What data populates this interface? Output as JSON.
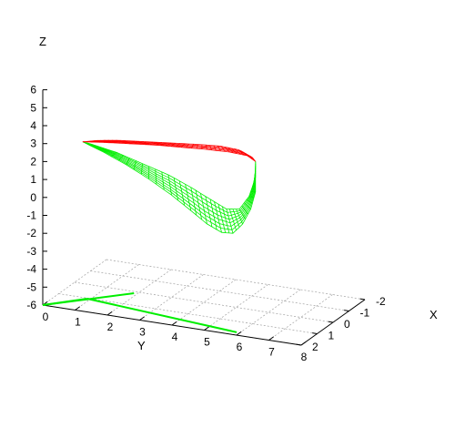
{
  "chart_data": {
    "type": "surface3d",
    "title": "",
    "zlabel": "Z",
    "ylabel": "Y",
    "xlabel": "X",
    "z_ticks": [
      "6",
      "5",
      "4",
      "3",
      "2",
      "1",
      "0",
      "-1",
      "-2",
      "-3",
      "-4",
      "-5",
      "-6"
    ],
    "y_ticks": [
      "0",
      "1",
      "2",
      "3",
      "4",
      "5",
      "6",
      "7",
      "8"
    ],
    "x_ticks": [
      "-2",
      "-1",
      "0",
      "1",
      "2"
    ],
    "zlim": [
      -6,
      6
    ],
    "ylim": [
      0,
      8
    ],
    "xlim": [
      -2,
      2
    ],
    "grid": true,
    "legend": "none",
    "colors": {
      "top_surface": "#ff0000",
      "bottom_surface": "#00ee00",
      "grid": "#a0a0a0",
      "axes": "#000000"
    },
    "series": [
      {
        "role": "top-surface",
        "color": "#ff0000",
        "rows": [
          [
            [
              0.25,
              1.9
            ],
            [
              0.9,
              2.05
            ],
            [
              1.7,
              2.2
            ],
            [
              2.5,
              2.35
            ],
            [
              3.3,
              2.45
            ],
            [
              4.1,
              2.55
            ],
            [
              4.8,
              2.6
            ],
            [
              5.35,
              2.55
            ],
            [
              5.6,
              2.3
            ]
          ],
          [
            [
              0.7,
              2.1
            ],
            [
              1.4,
              2.3
            ],
            [
              2.2,
              2.45
            ],
            [
              3.0,
              2.6
            ],
            [
              3.8,
              2.75
            ],
            [
              4.5,
              2.85
            ],
            [
              5.1,
              2.8
            ],
            [
              5.5,
              2.5
            ]
          ]
        ]
      },
      {
        "role": "bottom-surface",
        "color": "#00ee00",
        "rows": [
          [
            [
              0.25,
              1.9
            ],
            [
              0.9,
              1.5
            ],
            [
              1.6,
              1.0
            ],
            [
              2.3,
              0.4
            ],
            [
              3.0,
              -0.3
            ],
            [
              3.6,
              -1.0
            ],
            [
              4.1,
              -1.6
            ],
            [
              4.55,
              -1.95
            ],
            [
              4.9,
              -1.9
            ],
            [
              5.2,
              -1.3
            ],
            [
              5.45,
              -0.4
            ],
            [
              5.6,
              0.6
            ],
            [
              5.6,
              2.3
            ]
          ],
          [
            [
              0.5,
              1.85
            ],
            [
              1.3,
              1.6
            ],
            [
              2.1,
              1.2
            ],
            [
              2.9,
              0.8
            ],
            [
              3.6,
              0.3
            ],
            [
              4.2,
              -0.2
            ],
            [
              4.7,
              -0.6
            ],
            [
              5.1,
              -0.5
            ],
            [
              5.4,
              0.3
            ],
            [
              5.6,
              1.4
            ]
          ]
        ]
      },
      {
        "role": "floor-projection",
        "color": "#00ee00",
        "segments": [
          [
            [
              0.0,
              -6.0
            ],
            [
              1.9,
              -1.5
            ]
          ],
          [
            [
              0.9,
              -3.7
            ],
            [
              5.9,
              -5.5
            ]
          ],
          [
            [
              0.0,
              -6.0
            ],
            [
              0.9,
              -3.7
            ]
          ]
        ]
      }
    ]
  }
}
